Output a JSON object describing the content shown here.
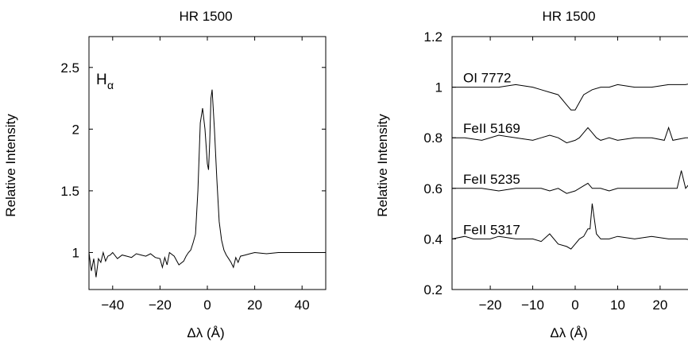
{
  "chart_data": [
    {
      "type": "line",
      "title": "HR 1500",
      "xlabel": "Δλ (Å)",
      "ylabel": "Relative Intensity",
      "xlim": [
        -50,
        50
      ],
      "ylim": [
        0.7,
        2.75
      ],
      "xticks": [
        -40,
        -20,
        0,
        20,
        40
      ],
      "xtick_labels": [
        "−40",
        "−20",
        "0",
        "20",
        "40"
      ],
      "yticks": [
        1,
        1.5,
        2,
        2.5
      ],
      "ytick_labels": [
        "1",
        "1.5",
        "2",
        "2.5"
      ],
      "annotations": [
        {
          "text": "H",
          "sub": "α",
          "x": -48,
          "y": 2.5
        }
      ],
      "grid": false,
      "series": [
        {
          "x": [
            -50,
            -49,
            -48,
            -47,
            -46,
            -45,
            -44,
            -43,
            -42,
            -41,
            -40,
            -38,
            -36,
            -34,
            -32,
            -30,
            -28,
            -26,
            -24,
            -22,
            -20,
            -19,
            -18,
            -17,
            -16,
            -14,
            -12,
            -10,
            -9,
            -8,
            -7,
            -6,
            -5,
            -4,
            -3,
            -2,
            -1,
            0,
            0.5,
            1,
            1.5,
            2,
            3,
            4,
            5,
            6,
            7,
            8,
            9,
            10,
            11,
            12,
            13,
            14,
            16,
            18,
            20,
            25,
            30,
            35,
            40,
            45,
            50
          ],
          "y": [
            1.0,
            0.85,
            0.95,
            0.8,
            0.95,
            0.92,
            1.0,
            0.93,
            0.97,
            0.98,
            1.0,
            0.95,
            0.98,
            0.97,
            0.96,
            0.99,
            0.98,
            0.97,
            0.99,
            0.96,
            0.95,
            0.88,
            0.96,
            0.9,
            1.0,
            0.97,
            0.9,
            0.93,
            0.97,
            1.0,
            1.02,
            1.08,
            1.15,
            1.5,
            2.05,
            2.17,
            2.0,
            1.72,
            1.67,
            1.9,
            2.25,
            2.32,
            2.0,
            1.6,
            1.25,
            1.1,
            1.02,
            0.98,
            0.95,
            0.92,
            0.88,
            0.96,
            0.92,
            0.97,
            0.98,
            0.99,
            1.0,
            0.99,
            1.0,
            1.0,
            1.0,
            1.0,
            1.0
          ]
        }
      ]
    },
    {
      "type": "line",
      "title": "HR 1500",
      "xlabel": "Δλ (Å)",
      "ylabel": "Relative Intensity",
      "xlim": [
        -29,
        29
      ],
      "ylim": [
        0.2,
        1.2
      ],
      "xticks": [
        -20,
        -10,
        0,
        10,
        20
      ],
      "xtick_labels": [
        "−20",
        "−10",
        "0",
        "10",
        "20"
      ],
      "yticks": [
        0.2,
        0.4,
        0.6,
        0.8,
        1,
        1.2
      ],
      "ytick_labels": [
        "0.2",
        "0.4",
        "0.6",
        "0.8",
        "1",
        "1.2"
      ],
      "grid": false,
      "series": [
        {
          "name": "OI 7772",
          "x": [
            -29,
            -26,
            -22,
            -18,
            -14,
            -10,
            -8,
            -6,
            -4,
            -3,
            -2,
            -1,
            0,
            1,
            2,
            4,
            6,
            8,
            10,
            14,
            18,
            22,
            26,
            29
          ],
          "y": [
            1.0,
            1.0,
            1.0,
            1.0,
            1.01,
            1.0,
            0.99,
            0.98,
            0.97,
            0.95,
            0.93,
            0.91,
            0.91,
            0.94,
            0.97,
            0.99,
            1.0,
            1.0,
            1.01,
            1.0,
            1.0,
            1.01,
            1.01,
            1.02
          ]
        },
        {
          "name": "FeII 5169",
          "x": [
            -29,
            -26,
            -22,
            -18,
            -14,
            -10,
            -8,
            -6,
            -4,
            -2,
            0,
            1,
            2,
            3,
            4,
            5,
            6,
            8,
            10,
            14,
            18,
            21,
            22,
            23,
            26,
            29
          ],
          "y": [
            0.8,
            0.8,
            0.79,
            0.81,
            0.8,
            0.79,
            0.8,
            0.81,
            0.8,
            0.78,
            0.79,
            0.8,
            0.82,
            0.84,
            0.82,
            0.8,
            0.79,
            0.8,
            0.79,
            0.8,
            0.8,
            0.79,
            0.84,
            0.79,
            0.8,
            0.8
          ]
        },
        {
          "name": "FeII 5235",
          "x": [
            -29,
            -26,
            -22,
            -18,
            -14,
            -10,
            -8,
            -6,
            -4,
            -2,
            0,
            2,
            3,
            4,
            6,
            8,
            10,
            14,
            18,
            22,
            24,
            25,
            26,
            27,
            29
          ],
          "y": [
            0.6,
            0.6,
            0.6,
            0.59,
            0.6,
            0.6,
            0.6,
            0.59,
            0.6,
            0.58,
            0.59,
            0.61,
            0.62,
            0.6,
            0.6,
            0.59,
            0.6,
            0.6,
            0.6,
            0.6,
            0.6,
            0.67,
            0.6,
            0.62,
            0.6
          ]
        },
        {
          "name": "FeII 5317",
          "x": [
            -29,
            -26,
            -24,
            -22,
            -20,
            -18,
            -14,
            -10,
            -8,
            -6,
            -4,
            -2,
            -1,
            0,
            1,
            2,
            3,
            3.5,
            4,
            5,
            6,
            8,
            10,
            14,
            18,
            22,
            26,
            29
          ],
          "y": [
            0.4,
            0.41,
            0.4,
            0.4,
            0.4,
            0.41,
            0.4,
            0.4,
            0.39,
            0.42,
            0.38,
            0.37,
            0.36,
            0.38,
            0.4,
            0.41,
            0.44,
            0.44,
            0.54,
            0.42,
            0.4,
            0.4,
            0.41,
            0.4,
            0.41,
            0.4,
            0.4,
            0.39
          ]
        }
      ]
    }
  ]
}
